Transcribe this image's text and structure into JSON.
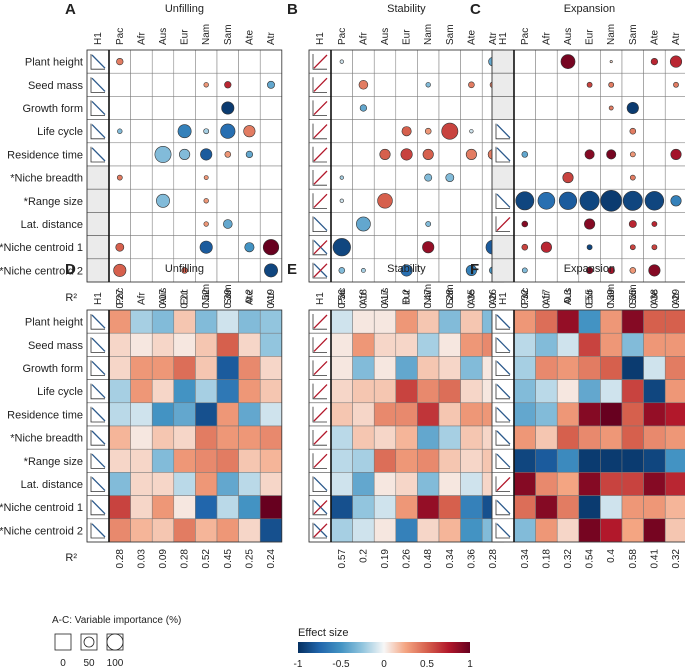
{
  "chart_data": {
    "type": "heatmap",
    "title": "Variable importance and effect size for unfilling, stability and expansion",
    "rows": [
      "Plant height",
      "Seed mass",
      "Growth form",
      "Life cycle",
      "Residence time",
      "*Niche breadth",
      "*Range size",
      "Lat. distance",
      "*Niche centroid 1",
      "*Niche centroid 2"
    ],
    "columns": [
      "H1",
      "Pac",
      "Afr",
      "Aus",
      "Eur",
      "Nam",
      "Sam",
      "Ate",
      "Atr"
    ],
    "r2_label": "R²",
    "scale": {
      "color_title": "Effect size",
      "color_ticks": [
        "-1",
        "-0.5",
        "0",
        "0.5",
        "1"
      ],
      "size_title": "A-C: Variable importance (%)",
      "size_ticks": [
        "0",
        "50",
        "100"
      ]
    },
    "panels": [
      {
        "letter": "A",
        "title": "Unfilling",
        "kind": "circle",
        "r2": [
          "0.27",
          "",
          "0.07",
          "0.21",
          "0.52",
          "0.39",
          "0.2",
          "0.19"
        ],
        "h1": [
          "neg",
          "neg",
          "neg",
          "neg",
          "neg",
          "none",
          "none",
          "none",
          "none",
          "none"
        ],
        "sizes": [
          [
            10,
            0,
            0,
            0,
            0,
            0,
            0,
            0
          ],
          [
            0,
            0,
            0,
            0,
            5,
            10,
            0,
            12
          ],
          [
            0,
            0,
            0,
            0,
            0,
            35,
            0,
            0
          ],
          [
            5,
            0,
            0,
            40,
            6,
            48,
            30,
            0
          ],
          [
            0,
            0,
            60,
            25,
            30,
            8,
            10,
            0
          ],
          [
            6,
            0,
            0,
            0,
            4,
            0,
            0,
            0
          ],
          [
            0,
            0,
            40,
            0,
            5,
            0,
            0,
            0
          ],
          [
            0,
            0,
            0,
            0,
            5,
            18,
            0,
            0
          ],
          [
            15,
            0,
            0,
            0,
            35,
            0,
            20,
            55
          ],
          [
            35,
            0,
            0,
            8,
            0,
            0,
            0,
            40
          ]
        ],
        "colors": [
          [
            0.4,
            0,
            0,
            0,
            0,
            0,
            0,
            0
          ],
          [
            0,
            0,
            0,
            0,
            0.3,
            0.7,
            0,
            -0.4
          ],
          [
            0,
            0,
            0,
            0,
            0,
            -0.95,
            0,
            0
          ],
          [
            -0.3,
            0,
            0,
            -0.6,
            -0.2,
            -0.7,
            0.4,
            0
          ],
          [
            0,
            0,
            -0.3,
            -0.3,
            -0.8,
            0.3,
            -0.4,
            0
          ],
          [
            0.4,
            0,
            0,
            0,
            0.3,
            0,
            0,
            0
          ],
          [
            0,
            0,
            -0.3,
            0,
            0.3,
            0,
            0,
            0
          ],
          [
            0,
            0,
            0,
            0,
            0.3,
            -0.4,
            0,
            0
          ],
          [
            0.5,
            0,
            0,
            0,
            -0.8,
            0,
            -0.5,
            1.0
          ],
          [
            0.5,
            0,
            0,
            0.5,
            0,
            0,
            0,
            -0.9
          ]
        ]
      },
      {
        "letter": "B",
        "title": "Stability",
        "kind": "circle",
        "r2": [
          "0.56",
          "0.18",
          "0.17",
          "0.2",
          "0.47",
          "0.28",
          "0.35",
          "0.26"
        ],
        "h1": [
          "pos",
          "pos",
          "pos",
          "pos",
          "pos",
          "pos",
          "pos",
          "neg",
          "cross",
          "cross"
        ],
        "sizes": [
          [
            3,
            0,
            0,
            0,
            0,
            0,
            0,
            18
          ],
          [
            0,
            18,
            0,
            0,
            5,
            0,
            8,
            8
          ],
          [
            0,
            10,
            0,
            0,
            0,
            0,
            0,
            0
          ],
          [
            0,
            0,
            0,
            20,
            8,
            60,
            3,
            0
          ],
          [
            0,
            0,
            25,
            30,
            25,
            0,
            25,
            22
          ],
          [
            3,
            0,
            0,
            0,
            12,
            15,
            0,
            0
          ],
          [
            3,
            0,
            50,
            0,
            0,
            0,
            0,
            0
          ],
          [
            0,
            45,
            0,
            0,
            6,
            0,
            0,
            0
          ],
          [
            70,
            0,
            0,
            0,
            30,
            0,
            0,
            45
          ],
          [
            8,
            4,
            0,
            30,
            0,
            0,
            25,
            12
          ]
        ],
        "colors": [
          [
            -0.1,
            0,
            0,
            0,
            0,
            0,
            0,
            -0.4
          ],
          [
            0,
            0.4,
            0,
            0,
            -0.3,
            0,
            0.4,
            0.4
          ],
          [
            0,
            -0.4,
            0,
            0,
            0,
            0,
            0,
            0
          ],
          [
            0,
            0,
            0,
            0.5,
            0.3,
            0.6,
            -0.1,
            0
          ],
          [
            0,
            0,
            0.5,
            0.6,
            0.5,
            0,
            0.4,
            0.4
          ],
          [
            -0.2,
            0,
            0,
            0,
            -0.3,
            -0.3,
            0,
            0
          ],
          [
            -0.1,
            0,
            0.5,
            0,
            0,
            0,
            0,
            0
          ],
          [
            0,
            -0.4,
            0,
            0,
            -0.3,
            0,
            0,
            0
          ],
          [
            -0.9,
            0,
            0,
            0,
            0.85,
            0,
            0,
            -0.8
          ],
          [
            -0.3,
            -0.2,
            0,
            -0.7,
            0,
            0,
            -0.6,
            -0.5
          ]
        ]
      },
      {
        "letter": "C",
        "title": "Expansion",
        "kind": "circle",
        "r2": [
          "0.32",
          "0.17",
          "0.3",
          "0.55",
          "0.39",
          "0.55",
          "0.38",
          "0.29"
        ],
        "h1": [
          "none",
          "none",
          "none",
          "neg",
          "neg",
          "none",
          "neg",
          "pos",
          "none",
          "none"
        ],
        "sizes": [
          [
            0,
            0,
            45,
            0,
            1,
            0,
            10,
            30
          ],
          [
            0,
            0,
            0,
            6,
            6,
            0,
            0,
            6
          ],
          [
            0,
            0,
            0,
            0,
            4,
            30,
            0,
            0
          ],
          [
            0,
            0,
            0,
            0,
            0,
            8,
            0,
            0
          ],
          [
            8,
            0,
            0,
            20,
            20,
            6,
            0,
            25
          ],
          [
            0,
            0,
            25,
            0,
            0,
            6,
            0,
            0
          ],
          [
            75,
            65,
            70,
            85,
            100,
            85,
            80,
            25
          ],
          [
            8,
            0,
            0,
            25,
            0,
            12,
            6,
            0
          ],
          [
            8,
            25,
            0,
            6,
            0,
            6,
            6,
            0
          ],
          [
            6,
            0,
            0,
            10,
            10,
            8,
            30,
            0
          ]
        ],
        "colors": [
          [
            0,
            0,
            0.95,
            0,
            0.1,
            0,
            0.7,
            0.7
          ],
          [
            0,
            0,
            0,
            0.6,
            0.4,
            0,
            0,
            0.4
          ],
          [
            0,
            0,
            0,
            0,
            0.4,
            -0.95,
            0,
            0
          ],
          [
            0,
            0,
            0,
            0,
            0,
            0.4,
            0,
            0
          ],
          [
            -0.4,
            0,
            0,
            0.9,
            0.95,
            0.3,
            0,
            0.8
          ],
          [
            0,
            0,
            0.6,
            0,
            0,
            0.4,
            0,
            0
          ],
          [
            -0.9,
            -0.7,
            -0.8,
            -0.9,
            -0.95,
            -0.9,
            -0.9,
            -0.6
          ],
          [
            0.9,
            0,
            0,
            0.9,
            0,
            0.7,
            0.7,
            0
          ],
          [
            0.6,
            0.7,
            0,
            -0.9,
            0,
            0.6,
            0.6,
            0
          ],
          [
            -0.3,
            0,
            0,
            0.9,
            0.8,
            0.3,
            0.9,
            0
          ]
        ]
      },
      {
        "letter": "D",
        "title": "Unfilling",
        "kind": "tile",
        "r2": [
          "0.28",
          "0.03",
          "0.09",
          "0.28",
          "0.52",
          "0.45",
          "0.25",
          "0.24"
        ],
        "h1": [
          "neg",
          "neg",
          "neg",
          "neg",
          "neg",
          "neg",
          "neg",
          "neg",
          "neg",
          "neg"
        ],
        "colors": [
          [
            0.3,
            -0.2,
            -0.3,
            0.15,
            -0.3,
            -0.1,
            -0.3,
            -0.25
          ],
          [
            0.1,
            0.05,
            0.1,
            0.05,
            0.15,
            0.5,
            0.1,
            -0.25
          ],
          [
            0.1,
            0.3,
            0.3,
            0.45,
            0.15,
            -0.8,
            0.35,
            0.1
          ],
          [
            -0.2,
            0.3,
            0.1,
            -0.5,
            -0.2,
            -0.65,
            0.3,
            0.15
          ],
          [
            -0.15,
            -0.1,
            -0.5,
            -0.4,
            -0.85,
            0.3,
            -0.4,
            -0.1
          ],
          [
            0.2,
            0.05,
            0.15,
            0.1,
            0.4,
            0.3,
            0.3,
            0.35
          ],
          [
            0.1,
            0.1,
            -0.3,
            0.3,
            0.35,
            0.4,
            0.15,
            0.2
          ],
          [
            -0.3,
            0.1,
            0.1,
            -0.15,
            0.3,
            -0.4,
            -0.15,
            0.1
          ],
          [
            0.6,
            0.1,
            0.3,
            0.05,
            -0.75,
            -0.15,
            -0.5,
            1.0
          ],
          [
            0.35,
            0.2,
            0.15,
            0.4,
            0.2,
            0.3,
            0.1,
            -0.85
          ]
        ]
      },
      {
        "letter": "E",
        "title": "Stability",
        "kind": "tile",
        "r2": [
          "0.57",
          "0.2",
          "0.19",
          "0.26",
          "0.48",
          "0.34",
          "0.36",
          "0.28"
        ],
        "h1": [
          "pos",
          "pos",
          "pos",
          "pos",
          "pos",
          "pos",
          "pos",
          "neg",
          "cross",
          "cross"
        ],
        "colors": [
          [
            -0.1,
            0.05,
            0.05,
            0.3,
            0.15,
            -0.3,
            0.15,
            -0.3
          ],
          [
            0.05,
            0.3,
            0.1,
            0.1,
            -0.2,
            0.05,
            0.3,
            0.35
          ],
          [
            0.05,
            -0.3,
            0.05,
            -0.4,
            0.15,
            0.1,
            -0.3,
            0.05
          ],
          [
            0.1,
            0.15,
            0.15,
            0.6,
            0.35,
            0.45,
            0.1,
            0.05
          ],
          [
            0.15,
            0.1,
            0.35,
            0.35,
            0.65,
            0.15,
            0.3,
            0.3
          ],
          [
            -0.15,
            0.15,
            0.1,
            0.2,
            -0.4,
            -0.2,
            0.15,
            0.1
          ],
          [
            -0.15,
            -0.2,
            0.45,
            0.3,
            0.35,
            0.15,
            0.1,
            0.15
          ],
          [
            -0.1,
            -0.4,
            0.05,
            0.1,
            -0.3,
            0.05,
            -0.1,
            0.1
          ],
          [
            -0.85,
            -0.25,
            -0.1,
            0.3,
            0.85,
            0.5,
            -0.6,
            -0.85
          ],
          [
            -0.2,
            -0.1,
            0.05,
            -0.6,
            0.1,
            0.2,
            -0.5,
            -0.3
          ]
        ]
      },
      {
        "letter": "F",
        "title": "Expansion",
        "kind": "tile",
        "r2": [
          "0.34",
          "0.18",
          "0.32",
          "0.54",
          "0.4",
          "0.58",
          "0.41",
          "0.32"
        ],
        "h1": [
          "neg",
          "neg",
          "neg",
          "neg",
          "neg",
          "neg",
          "neg",
          "pos",
          "neg",
          "neg"
        ],
        "colors": [
          [
            0.3,
            0.45,
            0.85,
            -0.5,
            0.3,
            0.9,
            0.5,
            0.5
          ],
          [
            -0.15,
            -0.3,
            -0.1,
            0.6,
            0.3,
            -0.3,
            0.3,
            0.3
          ],
          [
            -0.2,
            0.35,
            0.3,
            0.4,
            0.5,
            -0.95,
            -0.1,
            0.4
          ],
          [
            -0.3,
            -0.15,
            0.05,
            -0.4,
            -0.1,
            0.6,
            -0.9,
            0.3
          ],
          [
            -0.4,
            -0.3,
            0.3,
            0.9,
            1.0,
            0.5,
            0.85,
            0.75
          ],
          [
            0.3,
            0.15,
            0.5,
            0.35,
            0.3,
            0.5,
            0.35,
            0.3
          ],
          [
            -0.9,
            -0.8,
            -0.55,
            -0.95,
            -0.95,
            -0.95,
            -0.9,
            -0.5
          ],
          [
            0.9,
            0.35,
            0.25,
            0.9,
            0.6,
            0.6,
            0.9,
            0.7
          ],
          [
            0.45,
            0.9,
            0.4,
            -0.95,
            -0.1,
            0.3,
            0.3,
            0.2
          ],
          [
            -0.3,
            0.3,
            0.1,
            0.95,
            0.75,
            0.25,
            0.95,
            0.15
          ]
        ]
      }
    ]
  }
}
